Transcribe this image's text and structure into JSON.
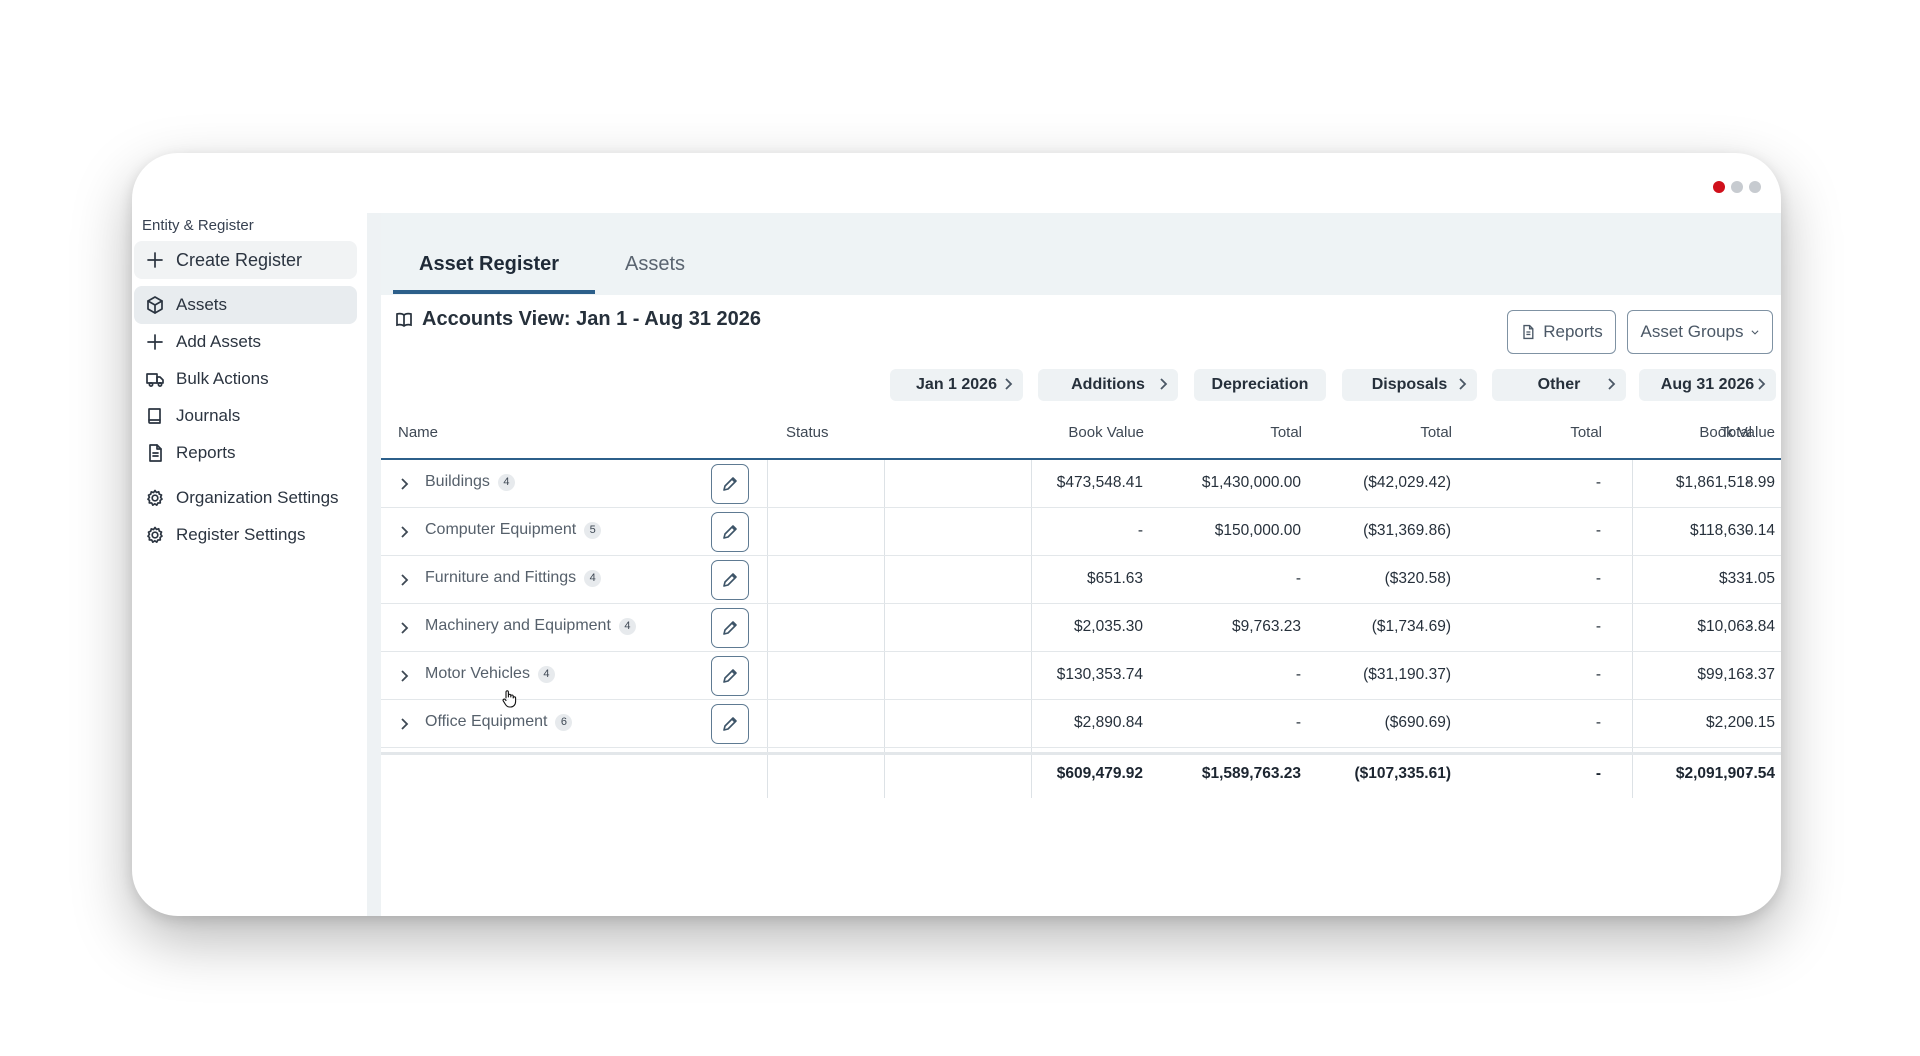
{
  "window": {
    "dot_colors": [
      "#d0101b",
      "#c7cbd0",
      "#c7cbd0"
    ]
  },
  "sidebar": {
    "section_label": "Entity & Register",
    "create_register": "Create Register",
    "items": [
      {
        "label": "Assets",
        "icon": "cube-icon",
        "active": true
      },
      {
        "label": "Add Assets",
        "icon": "plus-icon"
      },
      {
        "label": "Bulk Actions",
        "icon": "truck-icon"
      },
      {
        "label": "Journals",
        "icon": "book-icon"
      },
      {
        "label": "Reports",
        "icon": "document-icon"
      },
      {
        "label": "Organization Settings",
        "icon": "gear-icon"
      },
      {
        "label": "Register Settings",
        "icon": "gear-icon"
      }
    ]
  },
  "tabs": [
    {
      "label": "Asset Register",
      "active": true
    },
    {
      "label": "Assets",
      "active": false
    }
  ],
  "view": {
    "title": "Accounts View: Jan 1 - Aug 31 2026"
  },
  "buttons": {
    "reports": "Reports",
    "asset_groups": "Asset Groups"
  },
  "column_groups": [
    "Jan 1 2026",
    "Additions",
    "Depreciation",
    "Disposals",
    "Other",
    "Aug 31 2026"
  ],
  "columns": [
    "Name",
    "Status",
    "Book Value",
    "Total",
    "Total",
    "Total",
    "Total",
    "Book Value"
  ],
  "rows": [
    {
      "name": "Buildings",
      "count": "4",
      "book_value_start": "$473,548.41",
      "additions": "$1,430,000.00",
      "depreciation": "($42,029.42)",
      "disposals": "-",
      "other": "-",
      "book_value_end": "$1,861,518.99"
    },
    {
      "name": "Computer Equipment",
      "count": "5",
      "book_value_start": "-",
      "additions": "$150,000.00",
      "depreciation": "($31,369.86)",
      "disposals": "-",
      "other": "-",
      "book_value_end": "$118,630.14"
    },
    {
      "name": "Furniture and Fittings",
      "count": "4",
      "book_value_start": "$651.63",
      "additions": "-",
      "depreciation": "($320.58)",
      "disposals": "-",
      "other": "-",
      "book_value_end": "$331.05"
    },
    {
      "name": "Machinery and Equipment",
      "count": "4",
      "book_value_start": "$2,035.30",
      "additions": "$9,763.23",
      "depreciation": "($1,734.69)",
      "disposals": "-",
      "other": "-",
      "book_value_end": "$10,063.84"
    },
    {
      "name": "Motor Vehicles",
      "count": "4",
      "book_value_start": "$130,353.74",
      "additions": "-",
      "depreciation": "($31,190.37)",
      "disposals": "-",
      "other": "-",
      "book_value_end": "$99,163.37"
    },
    {
      "name": "Office Equipment",
      "count": "6",
      "book_value_start": "$2,890.84",
      "additions": "-",
      "depreciation": "($690.69)",
      "disposals": "-",
      "other": "-",
      "book_value_end": "$2,200.15"
    }
  ],
  "totals": {
    "book_value_start": "$609,479.92",
    "additions": "$1,589,763.23",
    "depreciation": "($107,335.61)",
    "disposals": "-",
    "other": "-",
    "book_value_end": "$2,091,907.54"
  }
}
